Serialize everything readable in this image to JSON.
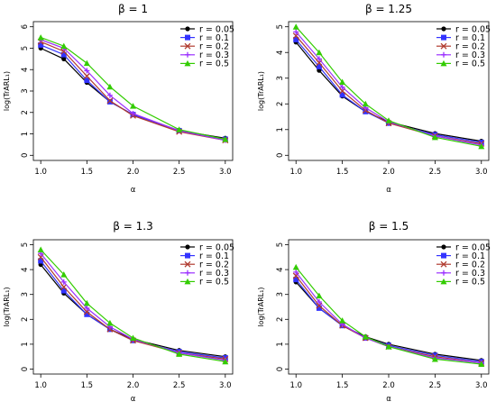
{
  "chart_data": [
    {
      "type": "line",
      "title": "β = 1",
      "xlabel": "α",
      "ylabel": "log(TrARL₁)",
      "x": [
        1.0,
        1.25,
        1.5,
        1.75,
        2.0,
        2.5,
        3.0
      ],
      "xticks": [
        "1.0",
        "1.5",
        "2.0",
        "2.5",
        "3.0"
      ],
      "yticks": [
        "0",
        "1",
        "2",
        "3",
        "4",
        "5",
        "6"
      ],
      "xlim": [
        1.0,
        3.0
      ],
      "ylim": [
        0,
        6
      ],
      "legend_position": "top-right",
      "series": [
        {
          "name": "r = 0.05",
          "values": [
            5.0,
            4.5,
            3.4,
            2.5,
            1.9,
            1.15,
            0.8
          ]
        },
        {
          "name": "r = 0.1",
          "values": [
            5.15,
            4.7,
            3.5,
            2.5,
            1.9,
            1.15,
            0.75
          ]
        },
        {
          "name": "r = 0.2",
          "values": [
            5.3,
            4.85,
            3.7,
            2.55,
            1.85,
            1.1,
            0.7
          ]
        },
        {
          "name": "r = 0.3",
          "values": [
            5.4,
            5.0,
            3.95,
            2.8,
            1.95,
            1.15,
            0.7
          ]
        },
        {
          "name": "r = 0.5",
          "values": [
            5.5,
            5.1,
            4.3,
            3.2,
            2.3,
            1.2,
            0.75
          ]
        }
      ]
    },
    {
      "type": "line",
      "title": "β = 1.25",
      "xlabel": "α",
      "ylabel": "log(TrARL₁)",
      "x": [
        1.0,
        1.25,
        1.5,
        1.75,
        2.0,
        2.5,
        3.0
      ],
      "xticks": [
        "1.0",
        "1.5",
        "2.0",
        "2.5",
        "3.0"
      ],
      "yticks": [
        "0",
        "1",
        "2",
        "3",
        "4",
        "5"
      ],
      "xlim": [
        1.0,
        3.0
      ],
      "ylim": [
        0,
        5
      ],
      "legend_position": "top-right",
      "series": [
        {
          "name": "r = 0.05",
          "values": [
            4.4,
            3.3,
            2.3,
            1.7,
            1.3,
            0.85,
            0.55
          ]
        },
        {
          "name": "r = 0.1",
          "values": [
            4.5,
            3.45,
            2.35,
            1.7,
            1.25,
            0.8,
            0.5
          ]
        },
        {
          "name": "r = 0.2",
          "values": [
            4.65,
            3.6,
            2.5,
            1.75,
            1.25,
            0.75,
            0.45
          ]
        },
        {
          "name": "r = 0.3",
          "values": [
            4.8,
            3.75,
            2.65,
            1.85,
            1.3,
            0.75,
            0.4
          ]
        },
        {
          "name": "r = 0.5",
          "values": [
            5.0,
            4.0,
            2.85,
            2.0,
            1.35,
            0.7,
            0.35
          ]
        }
      ]
    },
    {
      "type": "line",
      "title": "β = 1.3",
      "xlabel": "α",
      "ylabel": "log(TrARL₁)",
      "x": [
        1.0,
        1.25,
        1.5,
        1.75,
        2.0,
        2.5,
        3.0
      ],
      "xticks": [
        "1.0",
        "1.5",
        "2.0",
        "2.5",
        "3.0"
      ],
      "yticks": [
        "0",
        "1",
        "2",
        "3",
        "4",
        "5"
      ],
      "xlim": [
        1.0,
        3.0
      ],
      "ylim": [
        0,
        5
      ],
      "legend_position": "top-right",
      "series": [
        {
          "name": "r = 0.05",
          "values": [
            4.2,
            3.05,
            2.2,
            1.6,
            1.2,
            0.75,
            0.5
          ]
        },
        {
          "name": "r = 0.1",
          "values": [
            4.35,
            3.15,
            2.2,
            1.6,
            1.15,
            0.7,
            0.45
          ]
        },
        {
          "name": "r = 0.2",
          "values": [
            4.5,
            3.3,
            2.3,
            1.6,
            1.15,
            0.65,
            0.4
          ]
        },
        {
          "name": "r = 0.3",
          "values": [
            4.65,
            3.5,
            2.45,
            1.7,
            1.2,
            0.65,
            0.35
          ]
        },
        {
          "name": "r = 0.5",
          "values": [
            4.8,
            3.8,
            2.65,
            1.85,
            1.25,
            0.6,
            0.3
          ]
        }
      ]
    },
    {
      "type": "line",
      "title": "β = 1.5",
      "xlabel": "α",
      "ylabel": "log(TrARL₁)",
      "x": [
        1.0,
        1.25,
        1.5,
        1.75,
        2.0,
        2.5,
        3.0
      ],
      "xticks": [
        "1.0",
        "1.5",
        "2.0",
        "2.5",
        "3.0"
      ],
      "yticks": [
        "0",
        "1",
        "2",
        "3",
        "4",
        "5"
      ],
      "xlim": [
        1.0,
        3.0
      ],
      "ylim": [
        0,
        5
      ],
      "legend_position": "top-right",
      "series": [
        {
          "name": "r = 0.05",
          "values": [
            3.5,
            2.45,
            1.75,
            1.3,
            1.0,
            0.6,
            0.35
          ]
        },
        {
          "name": "r = 0.1",
          "values": [
            3.6,
            2.45,
            1.75,
            1.25,
            0.95,
            0.55,
            0.3
          ]
        },
        {
          "name": "r = 0.2",
          "values": [
            3.75,
            2.55,
            1.75,
            1.25,
            0.9,
            0.5,
            0.25
          ]
        },
        {
          "name": "r = 0.3",
          "values": [
            3.9,
            2.7,
            1.8,
            1.25,
            0.9,
            0.45,
            0.25
          ]
        },
        {
          "name": "r = 0.5",
          "values": [
            4.1,
            2.95,
            1.95,
            1.3,
            0.9,
            0.4,
            0.2
          ]
        }
      ]
    }
  ],
  "series_colors": [
    "#000000",
    "#3333ff",
    "#b03a2e",
    "#9b30ff",
    "#33cc00"
  ],
  "series_markers": [
    "circle",
    "square",
    "cross",
    "plus",
    "triangle"
  ]
}
